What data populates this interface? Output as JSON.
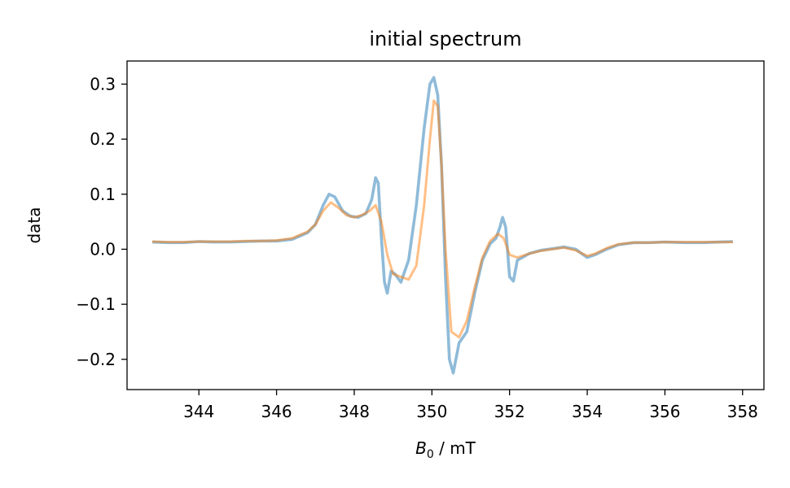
{
  "chart_data": {
    "type": "line",
    "title": "initial spectrum",
    "xlabel_main": "B",
    "xlabel_sub": "0",
    "xlabel_rest": " / mT",
    "ylabel": "data",
    "xlim": [
      342.15,
      358.55
    ],
    "ylim": [
      -0.255,
      0.342
    ],
    "xticks": [
      344,
      346,
      348,
      350,
      352,
      354,
      356,
      358
    ],
    "xtick_labels": [
      "344",
      "346",
      "348",
      "350",
      "352",
      "354",
      "356",
      "358"
    ],
    "yticks": [
      -0.2,
      -0.1,
      0.0,
      0.1,
      0.2,
      0.3
    ],
    "ytick_labels": [
      "−0.2",
      "−0.1",
      "0.0",
      "0.1",
      "0.2",
      "0.3"
    ],
    "grid": false,
    "legend": false,
    "series": [
      {
        "color": "#1f77b4",
        "opacity": 0.5,
        "x": [
          342.8,
          343.2,
          343.6,
          344.0,
          344.4,
          344.8,
          345.2,
          345.6,
          346.0,
          346.4,
          346.8,
          347.0,
          347.2,
          347.35,
          347.5,
          347.7,
          347.9,
          348.1,
          348.3,
          348.45,
          348.55,
          348.62,
          348.7,
          348.78,
          348.85,
          348.95,
          349.05,
          349.2,
          349.4,
          349.6,
          349.8,
          349.95,
          350.05,
          350.15,
          350.25,
          350.35,
          350.45,
          350.55,
          350.7,
          350.9,
          351.1,
          351.3,
          351.5,
          351.65,
          351.75,
          351.82,
          351.9,
          352.0,
          352.1,
          352.2,
          352.5,
          352.8,
          353.1,
          353.4,
          353.7,
          354.0,
          354.2,
          354.5,
          354.8,
          355.2,
          355.6,
          356.0,
          356.5,
          357.0,
          357.4,
          357.75
        ],
        "y": [
          0.013,
          0.012,
          0.012,
          0.014,
          0.013,
          0.013,
          0.014,
          0.015,
          0.015,
          0.018,
          0.03,
          0.045,
          0.08,
          0.1,
          0.095,
          0.07,
          0.06,
          0.058,
          0.065,
          0.09,
          0.13,
          0.12,
          0.02,
          -0.06,
          -0.08,
          -0.04,
          -0.045,
          -0.06,
          -0.02,
          0.08,
          0.22,
          0.3,
          0.312,
          0.28,
          0.15,
          -0.05,
          -0.2,
          -0.225,
          -0.17,
          -0.15,
          -0.08,
          -0.02,
          0.01,
          0.02,
          0.04,
          0.058,
          0.04,
          -0.05,
          -0.058,
          -0.02,
          -0.008,
          -0.002,
          0.001,
          0.004,
          0.0,
          -0.015,
          -0.01,
          0.0,
          0.008,
          0.012,
          0.012,
          0.013,
          0.012,
          0.012,
          0.013,
          0.014
        ]
      },
      {
        "color": "#ff7f0e",
        "opacity": 0.5,
        "x": [
          342.8,
          343.2,
          343.6,
          344.0,
          344.4,
          344.8,
          345.2,
          345.6,
          346.0,
          346.4,
          346.8,
          347.0,
          347.2,
          347.4,
          347.6,
          347.8,
          348.0,
          348.2,
          348.4,
          348.55,
          348.7,
          348.85,
          349.0,
          349.2,
          349.4,
          349.6,
          349.8,
          349.95,
          350.05,
          350.15,
          350.25,
          350.35,
          350.5,
          350.7,
          350.9,
          351.1,
          351.3,
          351.5,
          351.7,
          351.85,
          352.0,
          352.2,
          352.5,
          352.8,
          353.1,
          353.4,
          353.7,
          354.0,
          354.2,
          354.5,
          354.8,
          355.2,
          355.6,
          356.0,
          356.5,
          357.0,
          357.4,
          357.75
        ],
        "y": [
          0.014,
          0.013,
          0.013,
          0.014,
          0.014,
          0.014,
          0.015,
          0.015,
          0.016,
          0.02,
          0.032,
          0.045,
          0.07,
          0.085,
          0.075,
          0.062,
          0.058,
          0.062,
          0.07,
          0.08,
          0.05,
          -0.01,
          -0.045,
          -0.05,
          -0.055,
          -0.03,
          0.08,
          0.2,
          0.27,
          0.26,
          0.15,
          0.0,
          -0.15,
          -0.16,
          -0.13,
          -0.07,
          -0.015,
          0.015,
          0.028,
          0.02,
          -0.01,
          -0.015,
          -0.008,
          -0.003,
          0.0,
          0.003,
          -0.002,
          -0.012,
          -0.008,
          0.002,
          0.009,
          0.012,
          0.012,
          0.013,
          0.013,
          0.013,
          0.013,
          0.013
        ]
      }
    ]
  }
}
